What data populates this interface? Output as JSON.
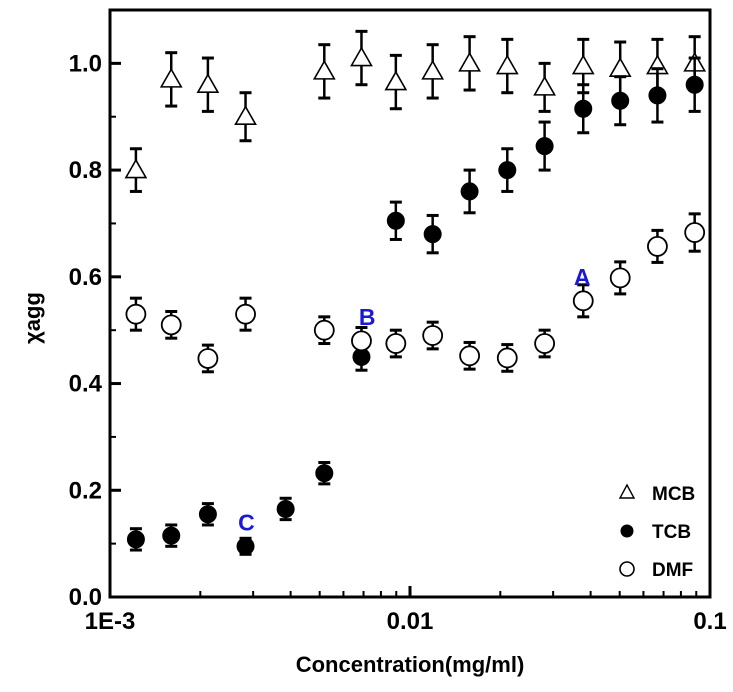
{
  "chart_data": {
    "type": "scatter",
    "title": "",
    "xlabel": "Concentration(mg/ml)",
    "ylabel": "χagg",
    "x_scale": "log",
    "xlim": [
      0.001,
      0.1
    ],
    "ylim": [
      0.0,
      1.1
    ],
    "x_ticks": [
      {
        "value": 0.001,
        "label": "1E-3"
      },
      {
        "value": 0.01,
        "label": "0.01"
      },
      {
        "value": 0.1,
        "label": "0.1"
      }
    ],
    "y_ticks": [
      {
        "value": 0.0,
        "label": "0.0"
      },
      {
        "value": 0.2,
        "label": "0.2"
      },
      {
        "value": 0.4,
        "label": "0.4"
      },
      {
        "value": 0.6,
        "label": "0.6"
      },
      {
        "value": 0.8,
        "label": "0.8"
      },
      {
        "value": 1.0,
        "label": "1.0"
      }
    ],
    "grid": false,
    "legend": {
      "position": "bottom-right"
    },
    "series": [
      {
        "name": "MCB",
        "marker": "open-triangle",
        "color": "#000000",
        "points": [
          {
            "x": 0.00122,
            "y": 0.8,
            "err": 0.04
          },
          {
            "x": 0.0016,
            "y": 0.97,
            "err": 0.05
          },
          {
            "x": 0.00212,
            "y": 0.96,
            "err": 0.05
          },
          {
            "x": 0.00283,
            "y": 0.9,
            "err": 0.045
          },
          {
            "x": 0.00518,
            "y": 0.985,
            "err": 0.05
          },
          {
            "x": 0.00689,
            "y": 1.01,
            "err": 0.05
          },
          {
            "x": 0.00897,
            "y": 0.965,
            "err": 0.05
          },
          {
            "x": 0.0119,
            "y": 0.985,
            "err": 0.05
          },
          {
            "x": 0.0158,
            "y": 1.0,
            "err": 0.05
          },
          {
            "x": 0.0211,
            "y": 0.995,
            "err": 0.05
          },
          {
            "x": 0.0281,
            "y": 0.955,
            "err": 0.045
          },
          {
            "x": 0.0378,
            "y": 0.995,
            "err": 0.05
          },
          {
            "x": 0.0502,
            "y": 0.99,
            "err": 0.05
          },
          {
            "x": 0.0668,
            "y": 0.995,
            "err": 0.05
          },
          {
            "x": 0.0889,
            "y": 1.0,
            "err": 0.05
          }
        ]
      },
      {
        "name": "TCB",
        "marker": "filled-circle",
        "color": "#000000",
        "points": [
          {
            "x": 0.00122,
            "y": 0.108,
            "err": 0.02
          },
          {
            "x": 0.0016,
            "y": 0.115,
            "err": 0.02
          },
          {
            "x": 0.00212,
            "y": 0.155,
            "err": 0.02
          },
          {
            "x": 0.00283,
            "y": 0.095,
            "err": 0.015
          },
          {
            "x": 0.00385,
            "y": 0.165,
            "err": 0.02
          },
          {
            "x": 0.00518,
            "y": 0.232,
            "err": 0.02
          },
          {
            "x": 0.00689,
            "y": 0.45,
            "err": 0.025
          },
          {
            "x": 0.00897,
            "y": 0.705,
            "err": 0.035
          },
          {
            "x": 0.0119,
            "y": 0.68,
            "err": 0.035
          },
          {
            "x": 0.0158,
            "y": 0.76,
            "err": 0.04
          },
          {
            "x": 0.0211,
            "y": 0.8,
            "err": 0.04
          },
          {
            "x": 0.0281,
            "y": 0.845,
            "err": 0.045
          },
          {
            "x": 0.0378,
            "y": 0.915,
            "err": 0.045
          },
          {
            "x": 0.0502,
            "y": 0.93,
            "err": 0.045
          },
          {
            "x": 0.0668,
            "y": 0.94,
            "err": 0.05
          },
          {
            "x": 0.0889,
            "y": 0.96,
            "err": 0.05
          }
        ]
      },
      {
        "name": "DMF",
        "marker": "open-circle",
        "color": "#000000",
        "points": [
          {
            "x": 0.00122,
            "y": 0.53,
            "err": 0.03
          },
          {
            "x": 0.0016,
            "y": 0.51,
            "err": 0.025
          },
          {
            "x": 0.00212,
            "y": 0.447,
            "err": 0.025
          },
          {
            "x": 0.00283,
            "y": 0.53,
            "err": 0.03
          },
          {
            "x": 0.00518,
            "y": 0.5,
            "err": 0.025
          },
          {
            "x": 0.00689,
            "y": 0.48,
            "err": 0.025
          },
          {
            "x": 0.00897,
            "y": 0.475,
            "err": 0.025
          },
          {
            "x": 0.0119,
            "y": 0.49,
            "err": 0.025
          },
          {
            "x": 0.0158,
            "y": 0.452,
            "err": 0.025
          },
          {
            "x": 0.0211,
            "y": 0.448,
            "err": 0.025
          },
          {
            "x": 0.0281,
            "y": 0.475,
            "err": 0.025
          },
          {
            "x": 0.0378,
            "y": 0.555,
            "err": 0.03
          },
          {
            "x": 0.0502,
            "y": 0.598,
            "err": 0.03
          },
          {
            "x": 0.0668,
            "y": 0.657,
            "err": 0.03
          },
          {
            "x": 0.0889,
            "y": 0.683,
            "err": 0.035
          }
        ]
      }
    ],
    "annotations": [
      {
        "text": "A",
        "x": 0.0375,
        "y": 0.585
      },
      {
        "text": "B",
        "x": 0.0072,
        "y": 0.51
      },
      {
        "text": "C",
        "x": 0.00285,
        "y": 0.125
      }
    ]
  }
}
